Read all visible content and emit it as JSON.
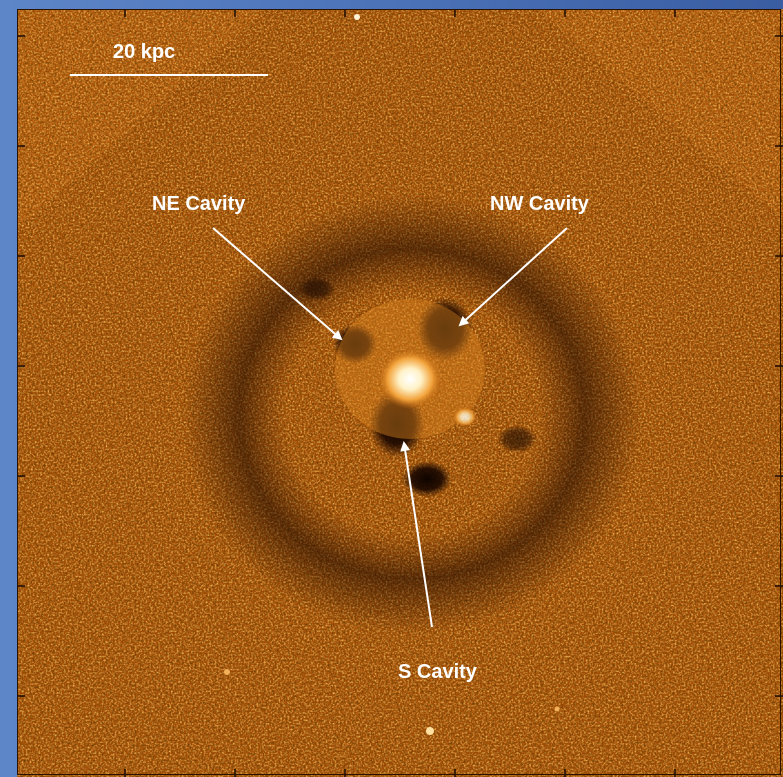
{
  "image": {
    "scale_bar_label": "20 kpc",
    "annotations": {
      "ne_cavity": "NE Cavity",
      "nw_cavity": "NW Cavity",
      "s_cavity": "S Cavity"
    },
    "colors": {
      "background_orange": "#a04d06",
      "bright_core": "#fff2c8",
      "cavity_dark": "#1a0700",
      "label_white": "#ffffff",
      "slide_blue": "#4f76bb"
    }
  }
}
